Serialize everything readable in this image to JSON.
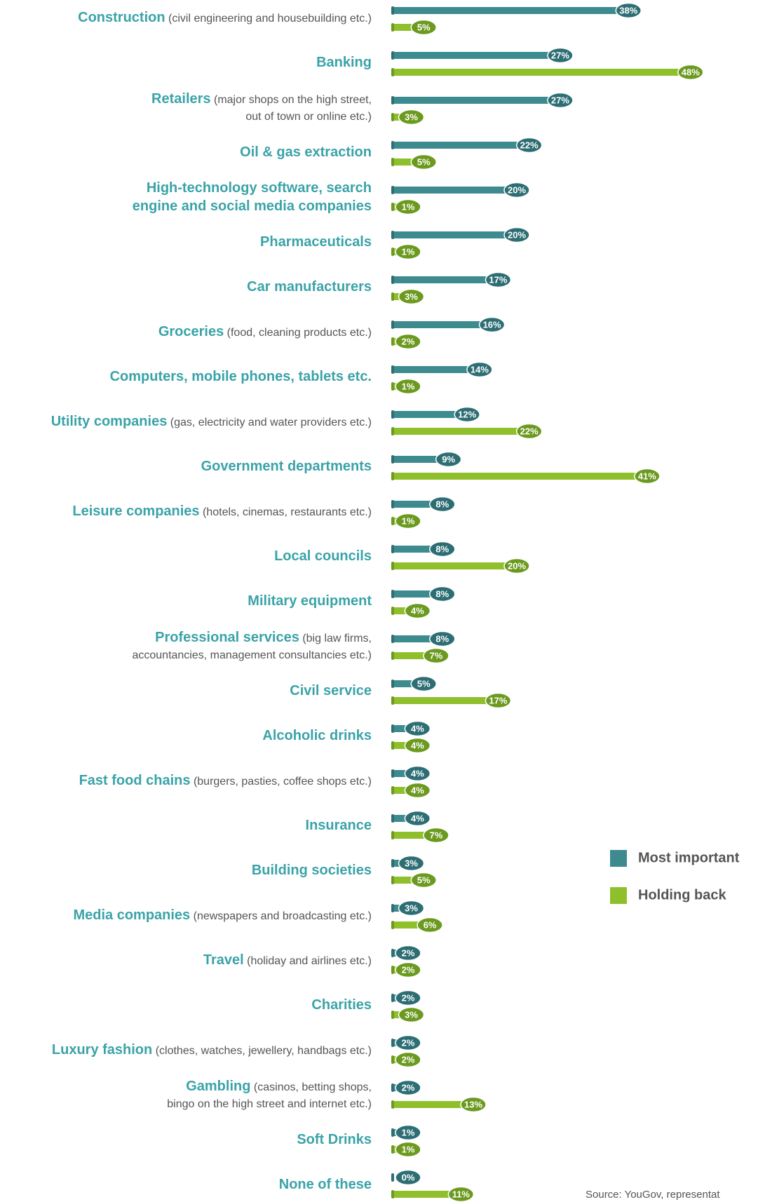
{
  "chart_data": {
    "type": "bar",
    "orientation": "horizontal",
    "categories": [
      "Construction",
      "Banking",
      "Retailers",
      "Oil & gas extraction",
      "High-technology software, search\nengine and social media companies",
      "Pharmaceuticals",
      "Car manufacturers",
      "Groceries",
      "Computers, mobile phones, tablets etc.",
      "Utility companies",
      "Government departments",
      "Leisure companies",
      "Local councils",
      "Military equipment",
      "Professional services",
      "Civil service",
      "Alcoholic drinks",
      "Fast food chains",
      "Insurance",
      "Building societies",
      "Media companies",
      "Travel",
      "Charities",
      "Luxury fashion",
      "Gambling",
      "Soft Drinks",
      "None of these"
    ],
    "category_notes": [
      "(civil engineering and housebuilding etc.)",
      null,
      "(major shops on the high street,\nout of town or online etc.)",
      null,
      null,
      null,
      null,
      "(food, cleaning products etc.)",
      null,
      "(gas, electricity and water providers etc.)",
      null,
      "(hotels, cinemas, restaurants etc.)",
      null,
      null,
      "(big law firms,\naccountancies, management consultancies etc.)",
      null,
      null,
      "(burgers, pasties, coffee shops etc.)",
      null,
      null,
      "(newspapers and broadcasting etc.)",
      "(holiday and airlines etc.)",
      null,
      "(clothes, watches, jewellery, handbags etc.)",
      "(casinos, betting shops,\nbingo on the high street and internet etc.)",
      null,
      null
    ],
    "series": [
      {
        "name": "Most important",
        "color": "#3d8a8f",
        "pill_color": "#2d6e74",
        "values": [
          38,
          27,
          27,
          22,
          20,
          20,
          17,
          16,
          14,
          12,
          9,
          8,
          8,
          8,
          8,
          5,
          4,
          4,
          4,
          3,
          3,
          2,
          2,
          2,
          2,
          1,
          0
        ],
        "value_labels": [
          "38%",
          "27%",
          "27%",
          "22%",
          "20%",
          "20%",
          "17%",
          "16%",
          "14%",
          "12%",
          "9%",
          "8%",
          "8%",
          "8%",
          "8%",
          "5%",
          "4%",
          "4%",
          "4%",
          "3%",
          "3%",
          "2%",
          "2%",
          "2%",
          "2%",
          "1%",
          "0%"
        ]
      },
      {
        "name": "Holding back",
        "color": "#8fc02c",
        "pill_color": "#6b9a1f",
        "values": [
          5,
          48,
          3,
          5,
          1,
          1,
          3,
          2,
          1,
          22,
          41,
          1,
          20,
          4,
          7,
          17,
          4,
          4,
          7,
          5,
          6,
          2,
          3,
          2,
          13,
          1,
          11
        ],
        "value_labels": [
          "5%",
          "48%",
          "3%",
          "5%",
          "1%",
          "1%",
          "3%",
          "2%",
          "1%",
          "22%",
          "41%",
          "1%",
          "20%",
          "4%",
          "7%",
          "17%",
          "4%",
          "4%",
          "7%",
          "5%",
          "6%",
          "2%",
          "3%",
          "2%",
          "13%",
          "1%",
          "11%"
        ]
      }
    ],
    "source": "Source: YouGov, representat"
  }
}
